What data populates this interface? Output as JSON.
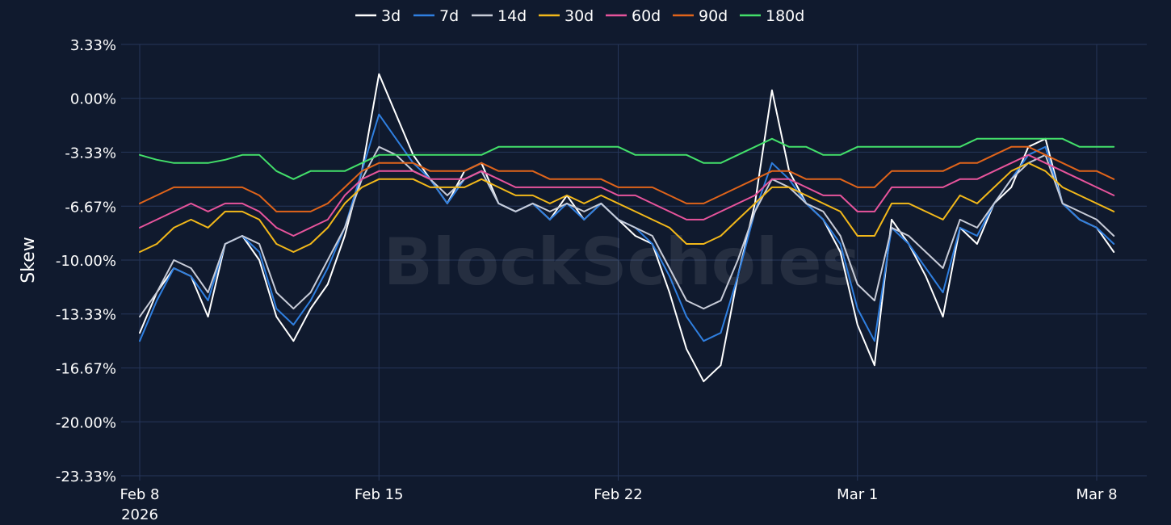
{
  "chart_data": {
    "type": "line",
    "title": "",
    "xlabel": "",
    "ylabel": "Skew",
    "watermark": "BlockScholes",
    "legend_position": "top-center",
    "grid": true,
    "background_color": "#101a2e",
    "grid_color": "#26365a",
    "text_color": "#ffffff",
    "x_ticks": [
      {
        "value": "2026-02-08",
        "label": "Feb 8",
        "sublabel": "2026"
      },
      {
        "value": "2026-02-15",
        "label": "Feb 15"
      },
      {
        "value": "2026-02-22",
        "label": "Feb 22"
      },
      {
        "value": "2026-03-01",
        "label": "Mar 1"
      },
      {
        "value": "2026-03-08",
        "label": "Mar 8"
      }
    ],
    "xlim": [
      "2026-02-08T00:00",
      "2026-03-08T15:00"
    ],
    "y_ticks": [
      3.33,
      0.0,
      -3.33,
      -6.67,
      -10.0,
      -13.33,
      -16.67,
      -20.0,
      -23.33
    ],
    "y_tick_labels": [
      "3.33%",
      "0.00%",
      "-3.33%",
      "-6.67%",
      "-10.00%",
      "-13.33%",
      "-16.67%",
      "-20.00%",
      "-23.33%"
    ],
    "ylim": [
      -23.33,
      3.33
    ],
    "x": [
      "2026-02-08T00:00",
      "2026-02-08T12:00",
      "2026-02-09T00:00",
      "2026-02-09T12:00",
      "2026-02-10T00:00",
      "2026-02-10T12:00",
      "2026-02-11T00:00",
      "2026-02-11T12:00",
      "2026-02-12T00:00",
      "2026-02-12T12:00",
      "2026-02-13T00:00",
      "2026-02-13T12:00",
      "2026-02-14T00:00",
      "2026-02-14T12:00",
      "2026-02-15T00:00",
      "2026-02-15T12:00",
      "2026-02-16T00:00",
      "2026-02-16T12:00",
      "2026-02-17T00:00",
      "2026-02-17T12:00",
      "2026-02-18T00:00",
      "2026-02-18T12:00",
      "2026-02-19T00:00",
      "2026-02-19T12:00",
      "2026-02-20T00:00",
      "2026-02-20T12:00",
      "2026-02-21T00:00",
      "2026-02-21T12:00",
      "2026-02-22T00:00",
      "2026-02-22T12:00",
      "2026-02-23T00:00",
      "2026-02-23T12:00",
      "2026-02-24T00:00",
      "2026-02-24T12:00",
      "2026-02-25T00:00",
      "2026-02-25T12:00",
      "2026-02-26T00:00",
      "2026-02-26T12:00",
      "2026-02-27T00:00",
      "2026-02-27T12:00",
      "2026-02-28T00:00",
      "2026-02-28T12:00",
      "2026-03-01T00:00",
      "2026-03-01T12:00",
      "2026-03-02T00:00",
      "2026-03-02T12:00",
      "2026-03-03T00:00",
      "2026-03-03T12:00",
      "2026-03-04T00:00",
      "2026-03-04T12:00",
      "2026-03-05T00:00",
      "2026-03-05T12:00",
      "2026-03-06T00:00",
      "2026-03-06T12:00",
      "2026-03-07T00:00",
      "2026-03-07T12:00",
      "2026-03-08T00:00",
      "2026-03-08T12:00"
    ],
    "series": [
      {
        "name": "3d",
        "color": "#ffffff",
        "values": [
          -14.5,
          -12.0,
          -10.5,
          -11.0,
          -13.5,
          -9.0,
          -8.5,
          -10.0,
          -13.5,
          -15.0,
          -13.0,
          -11.5,
          -8.5,
          -4.5,
          1.5,
          -1.0,
          -3.5,
          -5.0,
          -6.5,
          -4.5,
          -4.0,
          -6.5,
          -7.0,
          -6.5,
          -7.5,
          -6.0,
          -7.5,
          -6.5,
          -7.5,
          -8.5,
          -9.0,
          -12.0,
          -15.5,
          -17.5,
          -16.5,
          -11.0,
          -6.5,
          0.5,
          -4.5,
          -6.5,
          -7.5,
          -9.5,
          -14.0,
          -16.5,
          -7.5,
          -9.0,
          -11.0,
          -13.5,
          -8.0,
          -9.0,
          -6.5,
          -5.5,
          -3.0,
          -2.5,
          -6.5,
          -7.5,
          -8.0,
          -9.5
        ]
      },
      {
        "name": "7d",
        "color": "#2f7fe0",
        "values": [
          -15.0,
          -12.5,
          -10.5,
          -11.0,
          -12.5,
          -9.0,
          -8.5,
          -9.5,
          -13.0,
          -14.0,
          -12.5,
          -10.5,
          -8.0,
          -4.5,
          -1.0,
          -2.5,
          -4.0,
          -5.0,
          -6.5,
          -5.0,
          -4.5,
          -6.5,
          -7.0,
          -6.5,
          -7.5,
          -6.5,
          -7.5,
          -6.5,
          -7.5,
          -8.0,
          -9.0,
          -11.0,
          -13.5,
          -15.0,
          -14.5,
          -11.0,
          -7.0,
          -4.0,
          -5.0,
          -6.5,
          -7.5,
          -9.0,
          -13.0,
          -15.0,
          -8.0,
          -9.0,
          -10.5,
          -12.0,
          -8.0,
          -8.5,
          -6.5,
          -5.0,
          -3.5,
          -3.0,
          -6.5,
          -7.5,
          -8.0,
          -9.0
        ]
      },
      {
        "name": "14d",
        "color": "#c8ccd8",
        "values": [
          -13.5,
          -12.0,
          -10.0,
          -10.5,
          -12.0,
          -9.0,
          -8.5,
          -9.0,
          -12.0,
          -13.0,
          -12.0,
          -10.0,
          -8.0,
          -5.0,
          -3.0,
          -3.5,
          -4.5,
          -5.0,
          -6.0,
          -5.0,
          -4.5,
          -6.5,
          -7.0,
          -6.5,
          -7.0,
          -6.5,
          -7.0,
          -6.5,
          -7.5,
          -8.0,
          -8.5,
          -10.5,
          -12.5,
          -13.0,
          -12.5,
          -10.0,
          -7.0,
          -5.0,
          -5.5,
          -6.5,
          -7.0,
          -8.5,
          -11.5,
          -12.5,
          -8.0,
          -8.5,
          -9.5,
          -10.5,
          -7.5,
          -8.0,
          -6.5,
          -5.0,
          -4.0,
          -3.5,
          -6.5,
          -7.0,
          -7.5,
          -8.5
        ]
      },
      {
        "name": "30d",
        "color": "#f2b81a",
        "values": [
          -9.5,
          -9.0,
          -8.0,
          -7.5,
          -8.0,
          -7.0,
          -7.0,
          -7.5,
          -9.0,
          -9.5,
          -9.0,
          -8.0,
          -6.5,
          -5.5,
          -5.0,
          -5.0,
          -5.0,
          -5.5,
          -5.5,
          -5.5,
          -5.0,
          -5.5,
          -6.0,
          -6.0,
          -6.5,
          -6.0,
          -6.5,
          -6.0,
          -6.5,
          -7.0,
          -7.5,
          -8.0,
          -9.0,
          -9.0,
          -8.5,
          -7.5,
          -6.5,
          -5.5,
          -5.5,
          -6.0,
          -6.5,
          -7.0,
          -8.5,
          -8.5,
          -6.5,
          -6.5,
          -7.0,
          -7.5,
          -6.0,
          -6.5,
          -5.5,
          -4.5,
          -4.0,
          -4.5,
          -5.5,
          -6.0,
          -6.5,
          -7.0
        ]
      },
      {
        "name": "60d",
        "color": "#e7549c",
        "values": [
          -8.0,
          -7.5,
          -7.0,
          -6.5,
          -7.0,
          -6.5,
          -6.5,
          -7.0,
          -8.0,
          -8.5,
          -8.0,
          -7.5,
          -6.0,
          -5.0,
          -4.5,
          -4.5,
          -4.5,
          -5.0,
          -5.0,
          -5.0,
          -4.5,
          -5.0,
          -5.5,
          -5.5,
          -5.5,
          -5.5,
          -5.5,
          -5.5,
          -6.0,
          -6.0,
          -6.5,
          -7.0,
          -7.5,
          -7.5,
          -7.0,
          -6.5,
          -6.0,
          -5.0,
          -5.0,
          -5.5,
          -6.0,
          -6.0,
          -7.0,
          -7.0,
          -5.5,
          -5.5,
          -5.5,
          -5.5,
          -5.0,
          -5.0,
          -4.5,
          -4.0,
          -3.5,
          -4.0,
          -4.5,
          -5.0,
          -5.5,
          -6.0
        ]
      },
      {
        "name": "90d",
        "color": "#e0641a",
        "values": [
          -6.5,
          -6.0,
          -5.5,
          -5.5,
          -5.5,
          -5.5,
          -5.5,
          -6.0,
          -7.0,
          -7.0,
          -7.0,
          -6.5,
          -5.5,
          -4.5,
          -4.0,
          -4.0,
          -4.0,
          -4.5,
          -4.5,
          -4.5,
          -4.0,
          -4.5,
          -4.5,
          -4.5,
          -5.0,
          -5.0,
          -5.0,
          -5.0,
          -5.5,
          -5.5,
          -5.5,
          -6.0,
          -6.5,
          -6.5,
          -6.0,
          -5.5,
          -5.0,
          -4.5,
          -4.5,
          -5.0,
          -5.0,
          -5.0,
          -5.5,
          -5.5,
          -4.5,
          -4.5,
          -4.5,
          -4.5,
          -4.0,
          -4.0,
          -3.5,
          -3.0,
          -3.0,
          -3.5,
          -4.0,
          -4.5,
          -4.5,
          -5.0
        ]
      },
      {
        "name": "180d",
        "color": "#43e06a",
        "values": [
          -3.5,
          -3.8,
          -4.0,
          -4.0,
          -4.0,
          -3.8,
          -3.5,
          -3.5,
          -4.5,
          -5.0,
          -4.5,
          -4.5,
          -4.5,
          -4.0,
          -3.5,
          -3.5,
          -3.5,
          -3.5,
          -3.5,
          -3.5,
          -3.5,
          -3.0,
          -3.0,
          -3.0,
          -3.0,
          -3.0,
          -3.0,
          -3.0,
          -3.0,
          -3.5,
          -3.5,
          -3.5,
          -3.5,
          -4.0,
          -4.0,
          -3.5,
          -3.0,
          -2.5,
          -3.0,
          -3.0,
          -3.5,
          -3.5,
          -3.0,
          -3.0,
          -3.0,
          -3.0,
          -3.0,
          -3.0,
          -3.0,
          -2.5,
          -2.5,
          -2.5,
          -2.5,
          -2.5,
          -2.5,
          -3.0,
          -3.0,
          -3.0
        ]
      }
    ]
  }
}
